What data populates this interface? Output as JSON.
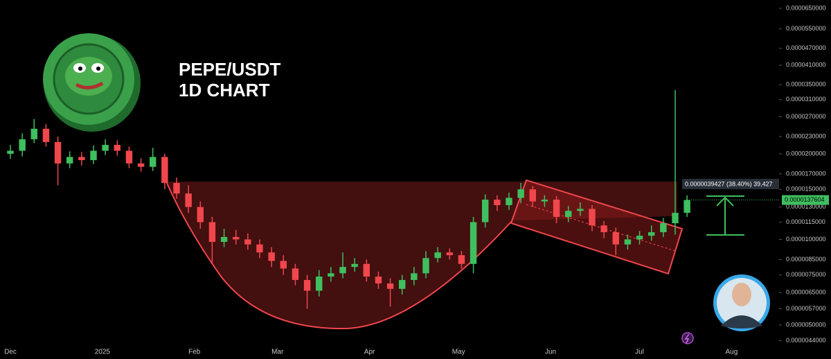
{
  "chart_data": {
    "type": "candlestick",
    "title": "PEPE/USDT",
    "subtitle": "1D CHART",
    "x": [
      0,
      4,
      8,
      12,
      16,
      20,
      24,
      28,
      32,
      36,
      40,
      44,
      48,
      52,
      56,
      60,
      64,
      68,
      72,
      76,
      80,
      84,
      88,
      92,
      96,
      100,
      104,
      108,
      112,
      116,
      120,
      124,
      128,
      132,
      136,
      140,
      144,
      148,
      152,
      156,
      160,
      164,
      168,
      172,
      176,
      180,
      184,
      188,
      192,
      196,
      200,
      204,
      208,
      212,
      216,
      220,
      224,
      228
    ],
    "open": [
      2e-05,
      2.05e-05,
      2.25e-05,
      2.45e-05,
      2.2e-05,
      1.85e-05,
      1.95e-05,
      1.9e-05,
      2.05e-05,
      2.15e-05,
      2.05e-05,
      1.85e-05,
      1.8e-05,
      1.95e-05,
      1.58e-05,
      1.45e-05,
      1.3e-05,
      1.15e-05,
      9.8e-06,
      1.02e-05,
      1e-05,
      9.6e-06,
      9e-06,
      8.4e-06,
      7.9e-06,
      7.2e-06,
      6.6e-06,
      7.4e-06,
      7.6e-06,
      8e-06,
      8.2e-06,
      7.4e-06,
      7e-06,
      6.7e-06,
      7.2e-06,
      7.6e-06,
      8.6e-06,
      9e-06,
      8.8e-06,
      8.2e-06,
      1.15e-05,
      1.38e-05,
      1.32e-05,
      1.4e-05,
      1.5e-05,
      1.36e-05,
      1.38e-05,
      1.2e-05,
      1.26e-05,
      1.28e-05,
      1.12e-05,
      1.06e-05,
      9.6e-06,
      1e-05,
      1.03e-05,
      1.06e-05,
      1.14e-05,
      1.24e-05
    ],
    "high": [
      2.15e-05,
      2.36e-05,
      2.65e-05,
      2.54e-05,
      2.3e-05,
      2.04e-05,
      2.03e-05,
      2.14e-05,
      2.25e-05,
      2.23e-05,
      2.12e-05,
      1.93e-05,
      2.1e-05,
      2e-05,
      1.65e-05,
      1.55e-05,
      1.36e-05,
      1.2e-05,
      1.09e-05,
      1.08e-05,
      1.05e-05,
      1e-05,
      9.4e-06,
      8.8e-06,
      8.2e-06,
      7.5e-06,
      7.8e-06,
      8e-06,
      9e-06,
      8.6e-06,
      8.5e-06,
      7.7e-06,
      7.3e-06,
      7.5e-06,
      8e-06,
      9.1e-06,
      9.4e-06,
      9.3e-06,
      9.1e-06,
      1.2e-05,
      1.44e-05,
      1.43e-05,
      1.46e-05,
      1.58e-05,
      1.54e-05,
      1.43e-05,
      1.42e-05,
      1.31e-05,
      1.35e-05,
      1.32e-05,
      1.16e-05,
      1.1e-05,
      1.04e-05,
      1.07e-05,
      1.12e-05,
      1.19e-05,
      3.35e-05,
      1.43e-05
    ],
    "low": [
      1.92e-05,
      1.96e-05,
      2.18e-05,
      2.12e-05,
      1.55e-05,
      1.78e-05,
      1.82e-05,
      1.84e-05,
      1.98e-05,
      1.97e-05,
      1.78e-05,
      1.73e-05,
      1.74e-05,
      1.5e-05,
      1.39e-05,
      1.24e-05,
      1.09e-05,
      8.2e-06,
      9.4e-06,
      9.6e-06,
      9.2e-06,
      8.6e-06,
      8e-06,
      7.5e-06,
      6.9e-06,
      5.7e-06,
      6.3e-06,
      7.1e-06,
      7.3e-06,
      7.7e-06,
      7.1e-06,
      6.7e-06,
      5.8e-06,
      6.4e-06,
      6.9e-06,
      7.3e-06,
      8.3e-06,
      8.5e-06,
      7.9e-06,
      7.6e-06,
      1.1e-05,
      1.26e-05,
      1.27e-05,
      1.34e-05,
      1.3e-05,
      1.3e-05,
      1.14e-05,
      1.15e-05,
      1.21e-05,
      1.07e-05,
      1.01e-05,
      8.8e-06,
      9.2e-06,
      9.6e-06,
      9.9e-06,
      1.02e-05,
      1.04e-05,
      1.2e-05
    ],
    "close": [
      2.05e-05,
      2.25e-05,
      2.45e-05,
      2.2e-05,
      1.85e-05,
      1.95e-05,
      1.9e-05,
      2.05e-05,
      2.15e-05,
      2.05e-05,
      1.85e-05,
      1.8e-05,
      1.95e-05,
      1.58e-05,
      1.45e-05,
      1.3e-05,
      1.15e-05,
      9.8e-06,
      1.02e-05,
      1e-05,
      9.6e-06,
      9e-06,
      8.4e-06,
      7.9e-06,
      7.2e-06,
      6.6e-06,
      7.4e-06,
      7.6e-06,
      8e-06,
      8.2e-06,
      7.4e-06,
      7e-06,
      6.7e-06,
      7.2e-06,
      7.6e-06,
      8.6e-06,
      9e-06,
      8.8e-06,
      8.2e-06,
      1.15e-05,
      1.38e-05,
      1.32e-05,
      1.4e-05,
      1.5e-05,
      1.36e-05,
      1.38e-05,
      1.2e-05,
      1.26e-05,
      1.28e-05,
      1.12e-05,
      1.06e-05,
      9.6e-06,
      1e-05,
      1.03e-05,
      1.06e-05,
      1.14e-05,
      1.24e-05,
      1.37604e-05
    ],
    "up_color": "#3fbf5f",
    "down_color": "#f0474d",
    "xlim": [
      -3.5,
      259
    ],
    "xticks": [
      {
        "value": 0,
        "label": "Dec"
      },
      {
        "value": 31,
        "label": "2025"
      },
      {
        "value": 62,
        "label": "Feb"
      },
      {
        "value": 90,
        "label": "Mar"
      },
      {
        "value": 121,
        "label": "Apr"
      },
      {
        "value": 151,
        "label": "May"
      },
      {
        "value": 182,
        "label": "Jun"
      },
      {
        "value": 212,
        "label": "Jul"
      },
      {
        "value": 243,
        "label": "Aug"
      }
    ],
    "ylim": [
      4.2e-06,
      6.95e-05
    ],
    "log_y": true,
    "grid": false,
    "yticks": [
      {
        "value": 6.5e-05,
        "label": "0.0000650000"
      },
      {
        "value": 5.5e-05,
        "label": "0.0000550000"
      },
      {
        "value": 4.7e-05,
        "label": "0.0000470000"
      },
      {
        "value": 4.1e-05,
        "label": "0.0000410000"
      },
      {
        "value": 3.5e-05,
        "label": "0.0000350000"
      },
      {
        "value": 3.1e-05,
        "label": "0.0000310000"
      },
      {
        "value": 2.7e-05,
        "label": "0.0000270000"
      },
      {
        "value": 2.3e-05,
        "label": "0.0000230000"
      },
      {
        "value": 2e-05,
        "label": "0.0000200000"
      },
      {
        "value": 1.7e-05,
        "label": "0.0000170000"
      },
      {
        "value": 1.5e-05,
        "label": "0.0000150000"
      },
      {
        "value": 1.3e-05,
        "label": "0.0000130000"
      },
      {
        "value": 1.15e-05,
        "label": "0.0000115000"
      },
      {
        "value": 1e-05,
        "label": "0.0000100000"
      },
      {
        "value": 8.5e-06,
        "label": "0.0000085000"
      },
      {
        "value": 7.5e-06,
        "label": "0.0000075000"
      },
      {
        "value": 6.5e-06,
        "label": "0.0000065000"
      },
      {
        "value": 5.7e-06,
        "label": "0.0000057000"
      },
      {
        "value": 5e-06,
        "label": "0.0000050000"
      },
      {
        "value": 4.4e-06,
        "label": "0.0000044000"
      }
    ],
    "measure_label": "0.0000039427 (38.40%) 39,427",
    "last_price_label": "0.0000137604"
  }
}
